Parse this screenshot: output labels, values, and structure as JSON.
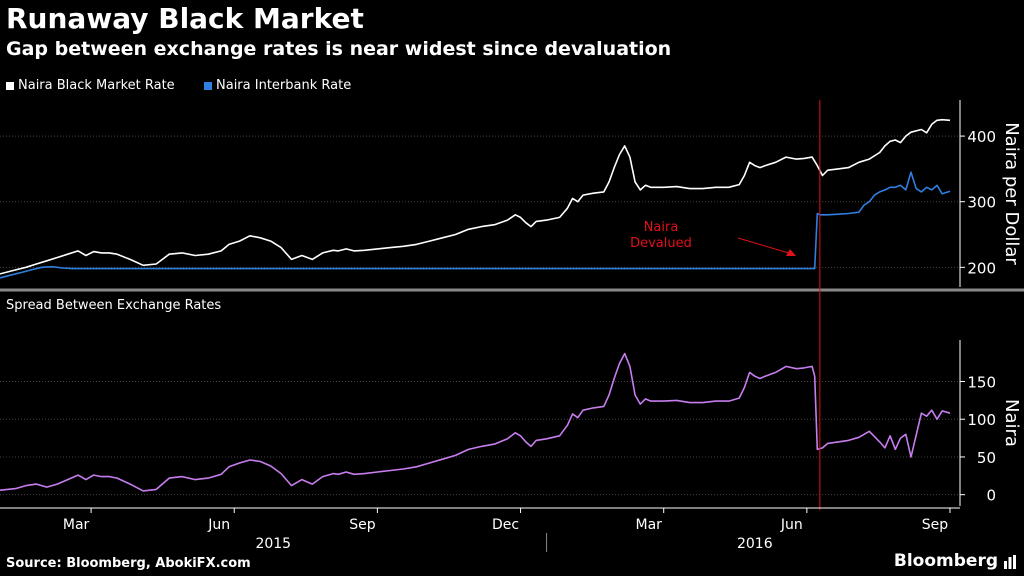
{
  "header": {
    "title": "Runaway Black Market",
    "subtitle": "Gap between exchange rates is near widest since devaluation"
  },
  "footer": {
    "source": "Source: Bloomberg, AbokiFX.com",
    "brand": "Bloomberg"
  },
  "colors": {
    "background": "#000000",
    "black_market": "#ffffff",
    "interbank": "#2f7fe0",
    "spread": "#c77dee",
    "annotation": "#e0101a"
  },
  "chart_data": [
    {
      "type": "line",
      "title": "Runaway Black Market",
      "ylabel": "Naira per Dollar",
      "ylim": [
        170,
        455
      ],
      "yticks": [
        200,
        300,
        400
      ],
      "x_range": [
        0,
        365
      ],
      "legend": [
        "Naira Black Market Rate",
        "Naira Interbank Rate"
      ],
      "annotation": {
        "text_line1": "Naira",
        "text_line2": "Devalued",
        "x": 315
      },
      "series": [
        {
          "name": "Naira Black Market Rate",
          "x": [
            0,
            6,
            10,
            14,
            18,
            22,
            26,
            30,
            33,
            36,
            39,
            42,
            45,
            50,
            55,
            60,
            65,
            70,
            75,
            80,
            85,
            88,
            92,
            96,
            100,
            104,
            108,
            112,
            116,
            120,
            124,
            128,
            130,
            133,
            136,
            140,
            145,
            150,
            155,
            160,
            165,
            170,
            175,
            180,
            185,
            190,
            195,
            198,
            200,
            202,
            204,
            206,
            210,
            215,
            218,
            220,
            222,
            224,
            228,
            232,
            234,
            236,
            238,
            240,
            242,
            244,
            246,
            248,
            250,
            255,
            260,
            265,
            270,
            275,
            280,
            284,
            286,
            288,
            290,
            292,
            294,
            298,
            302,
            306,
            309,
            312,
            314,
            316,
            318,
            322,
            326,
            330,
            334,
            338,
            340,
            342,
            344,
            346,
            348,
            350,
            354,
            356,
            358,
            360,
            362,
            365
          ],
          "values": [
            190,
            196,
            200,
            205,
            210,
            215,
            220,
            225,
            218,
            224,
            222,
            222,
            220,
            212,
            203,
            205,
            220,
            222,
            218,
            220,
            225,
            235,
            240,
            248,
            245,
            240,
            230,
            212,
            218,
            212,
            222,
            226,
            225,
            228,
            225,
            226,
            228,
            230,
            232,
            235,
            240,
            245,
            250,
            258,
            262,
            265,
            272,
            280,
            276,
            268,
            262,
            270,
            272,
            276,
            290,
            305,
            300,
            310,
            313,
            315,
            330,
            352,
            372,
            385,
            368,
            330,
            318,
            325,
            322,
            322,
            323,
            320,
            320,
            322,
            322,
            326,
            340,
            360,
            355,
            352,
            355,
            360,
            368,
            365,
            366,
            368,
            355,
            340,
            348,
            350,
            352,
            360,
            365,
            375,
            385,
            392,
            394,
            390,
            400,
            406,
            410,
            405,
            418,
            424,
            425,
            424
          ]
        },
        {
          "name": "Naira Interbank Rate",
          "x": [
            0,
            4,
            8,
            12,
            16,
            20,
            24,
            28,
            60,
            100,
            150,
            200,
            250,
            300,
            310,
            313,
            314,
            315,
            318,
            322,
            326,
            330,
            332,
            334,
            336,
            338,
            340,
            342,
            344,
            346,
            348,
            350,
            352,
            354,
            356,
            358,
            360,
            362,
            365
          ],
          "values": [
            184,
            188,
            192,
            196,
            200,
            201,
            199,
            198,
            198,
            198,
            198,
            198,
            198,
            198,
            198,
            198,
            282,
            280,
            280,
            281,
            282,
            284,
            295,
            300,
            310,
            315,
            318,
            322,
            322,
            325,
            318,
            345,
            320,
            315,
            322,
            318,
            325,
            312,
            316
          ]
        }
      ]
    },
    {
      "type": "line",
      "title": "Spread Between Exchange Rates",
      "ylabel": "Naira",
      "ylim": [
        -15,
        205
      ],
      "yticks": [
        0,
        50,
        100,
        150
      ],
      "x_range": [
        0,
        365
      ],
      "legend": [
        "Spread Between Exchange Rates"
      ],
      "x_ticks": [
        "Mar",
        "Jun",
        "Sep",
        "Dec",
        "Mar",
        "Jun",
        "Sep"
      ],
      "x_tick_positions": [
        35,
        90,
        145,
        200,
        255,
        310,
        365
      ],
      "year_labels": [
        "2015",
        "2016"
      ],
      "year_label_positions": [
        105,
        290
      ],
      "year_divider_x": 210,
      "series": [
        {
          "name": "Spread Between Exchange Rates",
          "x": [
            0,
            6,
            10,
            14,
            18,
            22,
            26,
            30,
            33,
            36,
            39,
            42,
            45,
            50,
            55,
            60,
            65,
            70,
            75,
            80,
            85,
            88,
            92,
            96,
            100,
            104,
            108,
            112,
            116,
            120,
            124,
            128,
            130,
            133,
            136,
            140,
            145,
            150,
            155,
            160,
            165,
            170,
            175,
            180,
            185,
            190,
            195,
            198,
            200,
            202,
            204,
            206,
            210,
            215,
            218,
            220,
            222,
            224,
            228,
            232,
            234,
            236,
            238,
            240,
            242,
            244,
            246,
            248,
            250,
            255,
            260,
            265,
            270,
            275,
            280,
            284,
            286,
            288,
            290,
            292,
            294,
            298,
            302,
            306,
            309,
            312,
            313,
            314,
            316,
            318,
            322,
            326,
            330,
            334,
            338,
            340,
            342,
            344,
            346,
            348,
            350,
            354,
            356,
            358,
            360,
            362,
            365
          ],
          "values": [
            6,
            8,
            12,
            14,
            10,
            14,
            20,
            26,
            20,
            26,
            24,
            24,
            22,
            14,
            5,
            7,
            22,
            24,
            20,
            22,
            27,
            37,
            42,
            46,
            44,
            38,
            28,
            12,
            20,
            14,
            24,
            28,
            27,
            30,
            27,
            28,
            30,
            32,
            34,
            37,
            42,
            47,
            52,
            60,
            64,
            67,
            74,
            82,
            78,
            70,
            64,
            72,
            74,
            78,
            92,
            107,
            102,
            112,
            115,
            117,
            132,
            154,
            174,
            187,
            170,
            132,
            120,
            127,
            124,
            124,
            125,
            122,
            122,
            124,
            124,
            128,
            142,
            162,
            157,
            154,
            157,
            162,
            170,
            167,
            168,
            170,
            157,
            60,
            62,
            68,
            70,
            72,
            76,
            84,
            70,
            62,
            78,
            60,
            75,
            80,
            50,
            108,
            104,
            112,
            100,
            111,
            108
          ]
        }
      ]
    }
  ]
}
